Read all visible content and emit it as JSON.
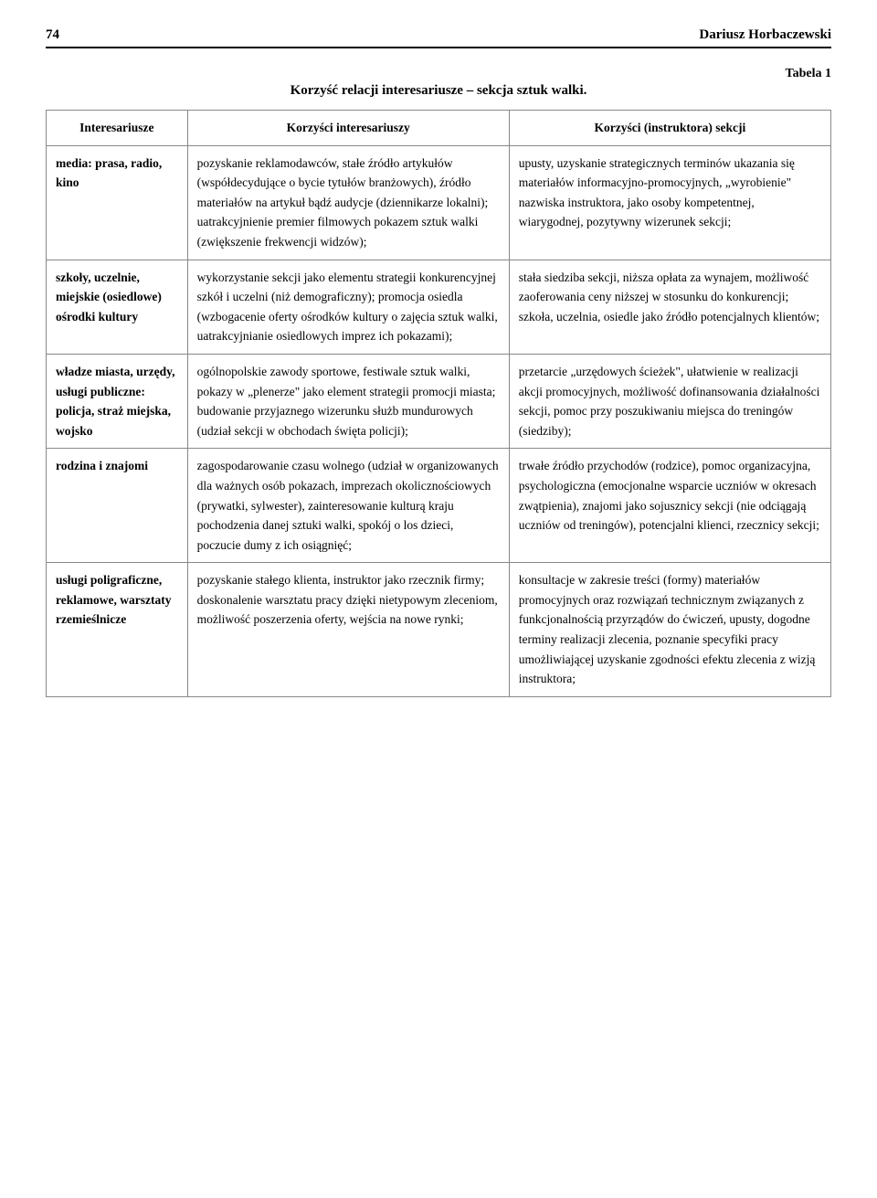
{
  "header": {
    "page_number": "74",
    "author": "Dariusz Horbaczewski"
  },
  "table": {
    "label": "Tabela 1",
    "title": "Korzyść relacji interesariusze – sekcja sztuk walki.",
    "columns": [
      "Interesariusze",
      "Korzyści interesariuszy",
      "Korzyści (instruktora) sekcji"
    ],
    "rows": [
      {
        "stakeholder": "media: prasa, radio, kino",
        "benefit_stakeholder": "pozyskanie reklamodawców, stałe źródło artykułów (współdecydujące o bycie tytułów branżowych), źródło materiałów na artykuł bądź audycje (dziennikarze lokalni); uatrakcyjnienie premier filmowych pokazem sztuk walki (zwiększenie frekwencji widzów);",
        "benefit_instructor": "upusty, uzyskanie strategicznych terminów ukazania się materiałów informacyjno-promocyjnych, „wyrobienie\" nazwiska instruktora, jako osoby kompetentnej, wiarygodnej, pozytywny wizerunek sekcji;"
      },
      {
        "stakeholder": "szkoły, uczelnie, miejskie (osiedlowe) ośrodki kultury",
        "benefit_stakeholder": "wykorzystanie sekcji jako elementu strategii konkurencyjnej szkół i uczelni (niż demograficzny); promocja osiedla (wzbogacenie oferty ośrodków kultury o zajęcia sztuk walki, uatrakcyjnianie osiedlowych imprez ich pokazami);",
        "benefit_instructor": "stała siedziba sekcji, niższa opłata za wynajem, możliwość zaoferowania ceny niższej w stosunku do konkurencji; szkoła, uczelnia, osiedle jako źródło potencjalnych klientów;"
      },
      {
        "stakeholder": "władze miasta, urzędy, usługi publiczne: policja, straż miejska, wojsko",
        "benefit_stakeholder": "ogólnopolskie zawody sportowe, festiwale sztuk walki, pokazy w „plenerze\" jako element strategii promocji miasta; budowanie przyjaznego wizerunku służb mundurowych (udział sekcji w obchodach święta policji);",
        "benefit_instructor": "przetarcie „urzędowych ścieżek\", ułatwienie w realizacji akcji promocyjnych, możliwość dofinansowania działalności sekcji, pomoc przy poszukiwaniu miejsca do treningów (siedziby);"
      },
      {
        "stakeholder": "rodzina i znajomi",
        "benefit_stakeholder": "zagospodarowanie czasu wolnego (udział w organizowanych dla ważnych osób pokazach, imprezach okolicznościowych (prywatki, sylwester), zainteresowanie kulturą kraju pochodzenia danej sztuki walki, spokój o los dzieci, poczucie dumy z ich osiągnięć;",
        "benefit_instructor": "trwałe źródło przychodów (rodzice), pomoc organizacyjna, psychologiczna (emocjonalne wsparcie uczniów w okresach zwątpienia), znajomi jako sojusznicy sekcji (nie odciągają uczniów od treningów),  potencjalni klienci, rzecznicy sekcji;"
      },
      {
        "stakeholder": "usługi poligraficzne, reklamowe, warsztaty rzemieślnicze",
        "benefit_stakeholder": "pozyskanie stałego klienta, instruktor jako rzecznik firmy; doskonalenie warsztatu pracy dzięki nietypowym zleceniom, możliwość poszerzenia oferty, wejścia na nowe rynki;",
        "benefit_instructor": "konsultacje w zakresie treści (formy) materiałów promocyjnych oraz rozwiązań technicznym związanych z funkcjonalnością przyrządów do ćwiczeń, upusty,  dogodne terminy realizacji zlecenia, poznanie specyfiki pracy umożliwiającej uzyskanie zgodności efektu zlecenia z wizją instruktora;"
      }
    ]
  }
}
